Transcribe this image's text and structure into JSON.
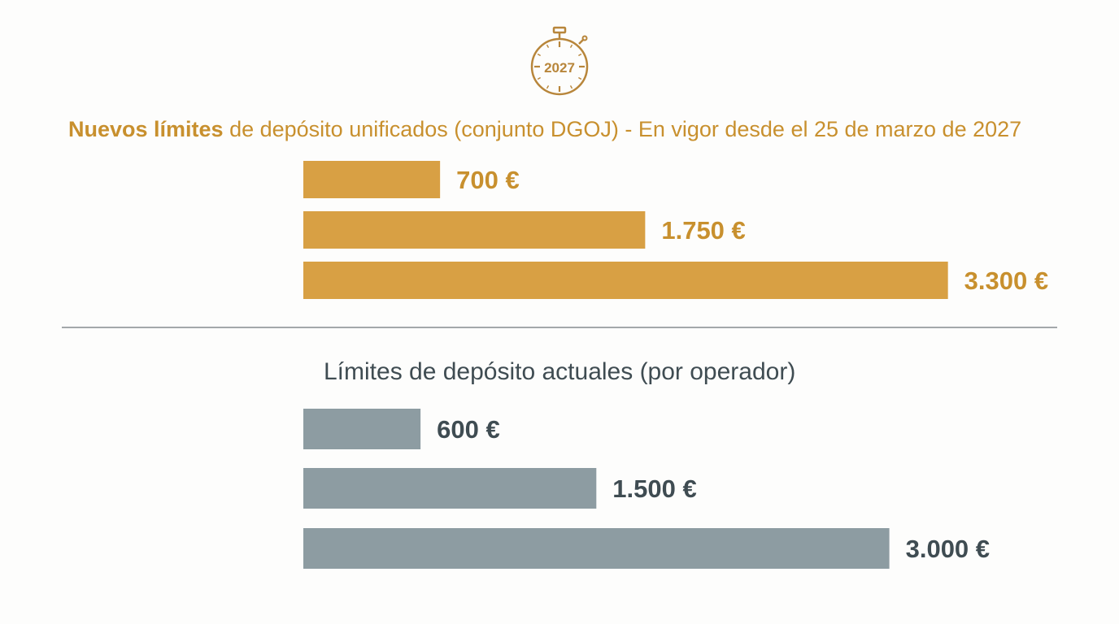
{
  "icon": {
    "name": "stopwatch-icon",
    "year_label": "2027",
    "color": "#b8863b"
  },
  "chart_data": [
    {
      "type": "bar",
      "orientation": "horizontal",
      "title_strong": "Nuevos límites",
      "title_rest": " de depósito unificados (conjunto DGOJ) - En vigor desde el 25 de marzo de 2027",
      "values": [
        700,
        1750,
        3300
      ],
      "value_labels": [
        "700 €",
        "1.750 €",
        "3.300 €"
      ],
      "color": "#d8a044",
      "label_color": "#c8902e",
      "title_color": "#c8902e"
    },
    {
      "type": "bar",
      "orientation": "horizontal",
      "title": "Límites de depósito actuales (por operador)",
      "values": [
        600,
        1500,
        3000
      ],
      "value_labels": [
        "600 €",
        "1.500 €",
        "3.000 €"
      ],
      "color": "#8d9ca2",
      "label_color": "#3f4c52",
      "title_color": "#3f4c52"
    }
  ],
  "divider_color": "#6e767a"
}
